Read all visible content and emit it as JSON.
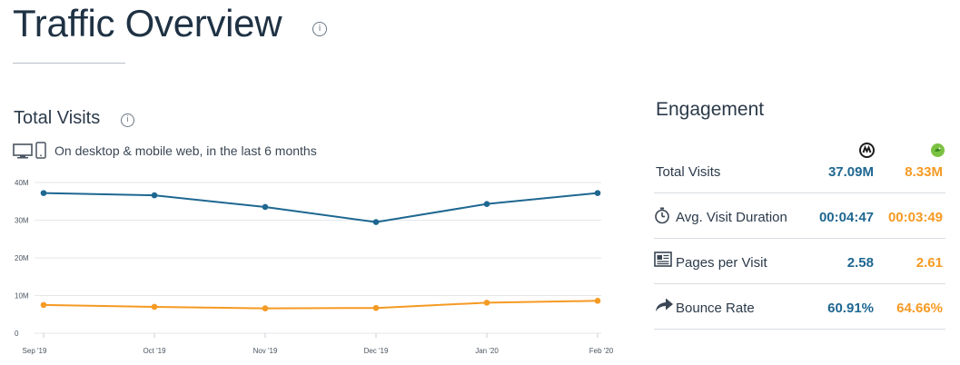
{
  "header": {
    "title": "Traffic Overview",
    "info_icon": "info-icon"
  },
  "visits": {
    "title": "Total Visits",
    "device_icons": [
      "desktop-icon",
      "mobile-icon"
    ],
    "device_text": "On desktop & mobile web, in the last 6 months"
  },
  "colors": {
    "primary": "#1e6791",
    "secondary": "#f59a23",
    "grid": "#e3e6ea"
  },
  "chart_data": {
    "type": "line",
    "categories": [
      "Sep '19",
      "Oct '19",
      "Nov '19",
      "Dec '19",
      "Jan '20",
      "Feb '20"
    ],
    "series": [
      {
        "values": [
          37.2,
          36.6,
          33.5,
          29.5,
          34.3,
          37.2
        ],
        "color": "#1e6791"
      },
      {
        "values": [
          7.5,
          7.0,
          6.6,
          6.7,
          8.1,
          8.6
        ],
        "color": "#f59a23"
      }
    ],
    "ylim": [
      0,
      40
    ],
    "yticks": [
      0,
      10,
      20,
      30,
      40
    ],
    "ytick_labels": [
      "0",
      "10M",
      "20M",
      "30M",
      "40M"
    ],
    "grid": true
  },
  "engagement": {
    "title": "Engagement",
    "logos": [
      "site-a-logo-icon",
      "site-b-logo-icon"
    ],
    "rows": [
      {
        "label": "Total Visits",
        "icon": "",
        "v1": "37.09M",
        "v2": "8.33M"
      },
      {
        "label": "Avg. Visit Duration",
        "icon": "stopwatch-icon",
        "v1": "00:04:47",
        "v2": "00:03:49"
      },
      {
        "label": "Pages per Visit",
        "icon": "pages-icon",
        "v1": "2.58",
        "v2": "2.61"
      },
      {
        "label": "Bounce Rate",
        "icon": "bounce-arrow-icon",
        "v1": "60.91%",
        "v2": "64.66%"
      }
    ]
  }
}
